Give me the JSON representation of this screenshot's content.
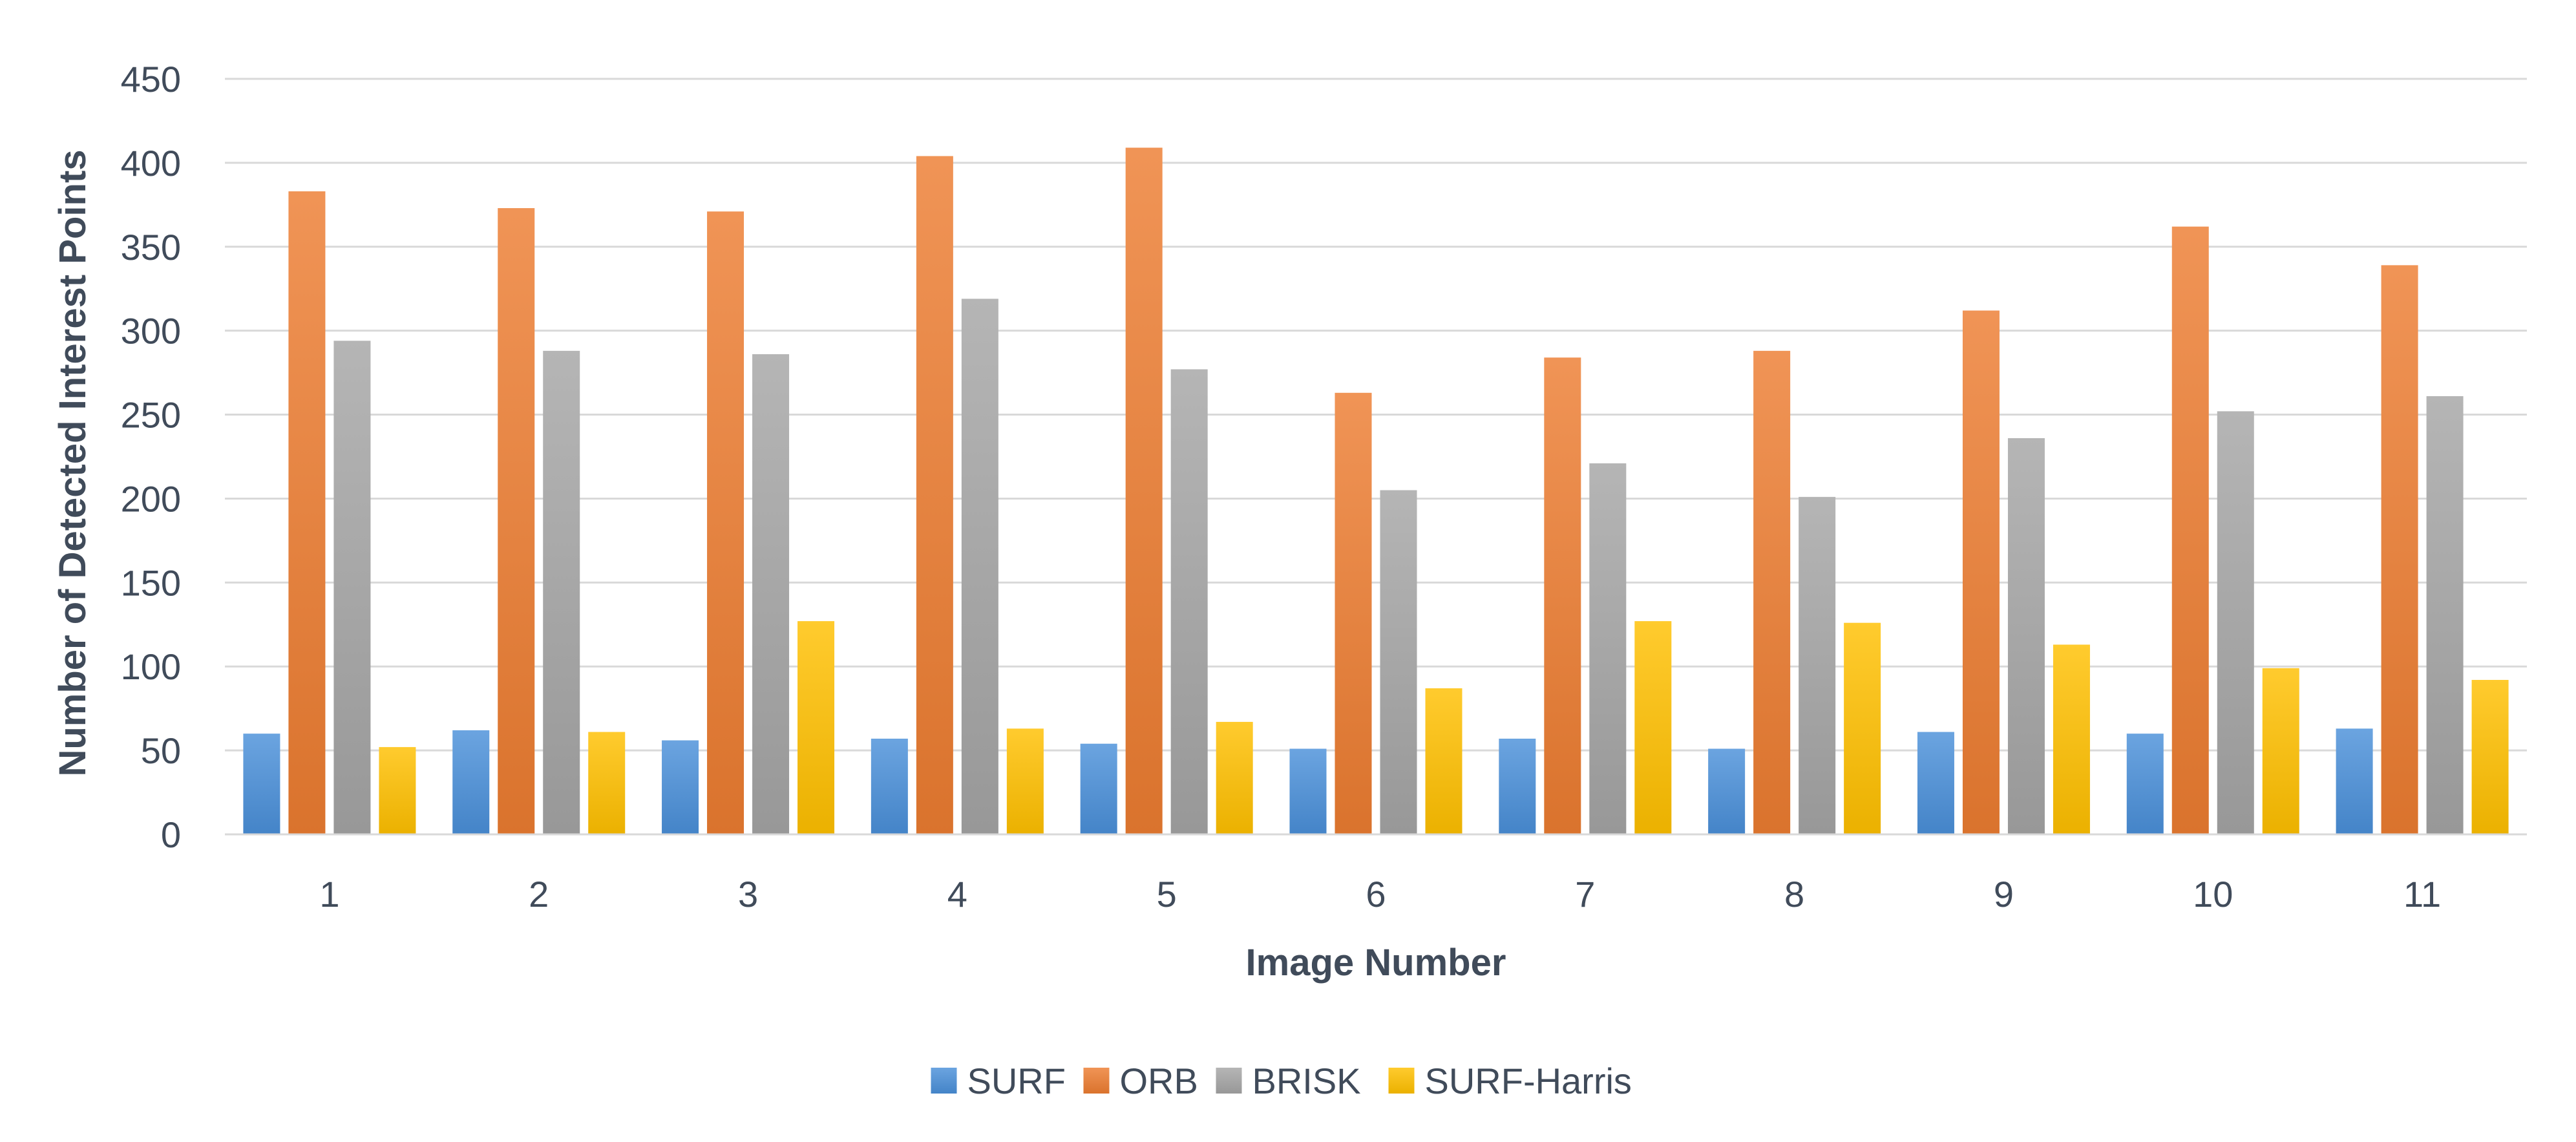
{
  "chart_data": {
    "type": "bar",
    "xlabel": "Image Number",
    "ylabel": "Number of Detected Interest Points",
    "ylim": [
      0,
      450
    ],
    "yticks": [
      0,
      50,
      100,
      150,
      200,
      250,
      300,
      350,
      400,
      450
    ],
    "grid": true,
    "legend_position": "bottom",
    "categories": [
      "1",
      "2",
      "3",
      "4",
      "5",
      "6",
      "7",
      "8",
      "9",
      "10",
      "11"
    ],
    "series": [
      {
        "name": "SURF",
        "color": "#4a90d9",
        "values": [
          60,
          62,
          56,
          57,
          54,
          51,
          57,
          51,
          61,
          60,
          63
        ]
      },
      {
        "name": "ORB",
        "color": "#ed7d31",
        "values": [
          383,
          373,
          371,
          404,
          409,
          263,
          284,
          288,
          312,
          362,
          339
        ]
      },
      {
        "name": "BRISK",
        "color": "#a5a5a5",
        "values": [
          294,
          288,
          286,
          319,
          277,
          205,
          221,
          201,
          236,
          252,
          261
        ]
      },
      {
        "name": "SURF-Harris",
        "color": "#ffc000",
        "values": [
          52,
          61,
          127,
          63,
          67,
          87,
          127,
          126,
          113,
          99,
          92
        ]
      }
    ]
  }
}
